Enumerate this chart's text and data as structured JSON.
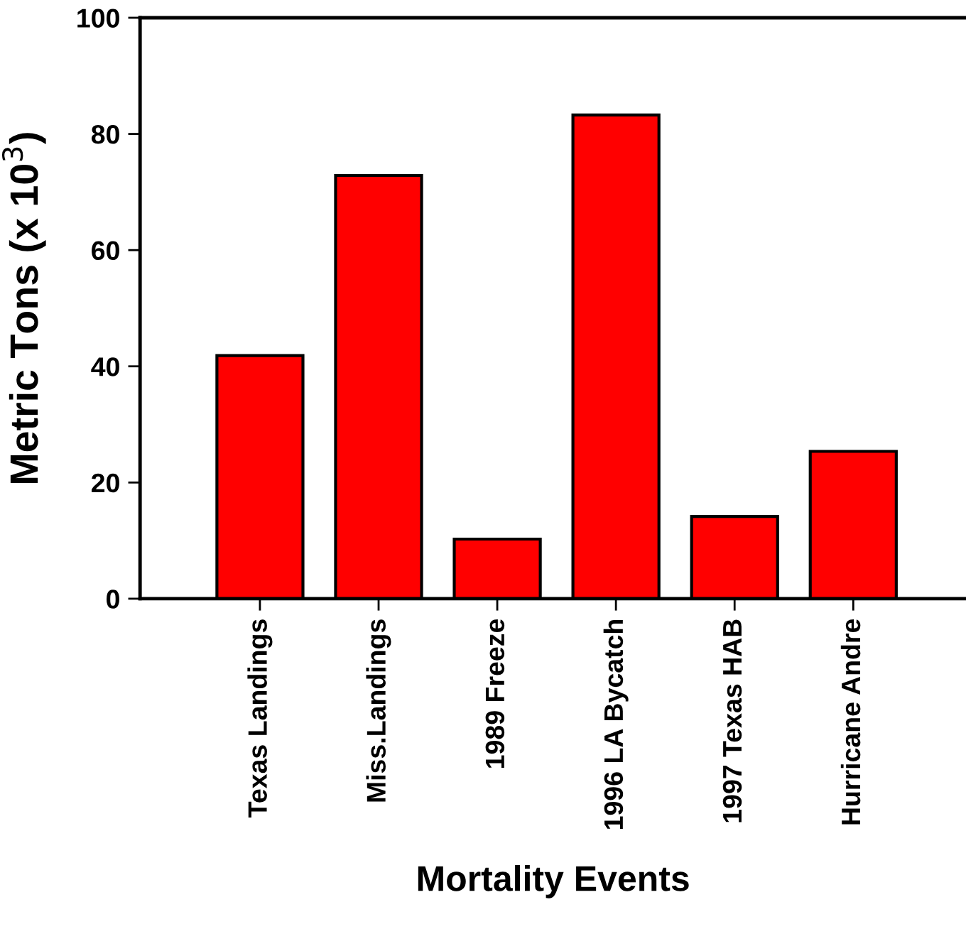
{
  "chart_data": {
    "type": "bar",
    "xlabel": "Mortality Events",
    "ylabel": "Metric Tons (x 10$^{3}$)",
    "categories": [
      "Texas Landings",
      "Miss.Landings",
      "1989 Freeze",
      "1996 LA Bycatch",
      "1997 Texas HAB",
      "Hurricane Andre"
    ],
    "values": [
      41.6,
      72.6,
      10.0,
      83.0,
      13.9,
      25.1
    ],
    "color": "#ff0000",
    "ylim": [
      0,
      100
    ],
    "yticks": [
      0,
      20,
      40,
      60,
      80,
      100
    ],
    "grid": false,
    "legend": false
  }
}
